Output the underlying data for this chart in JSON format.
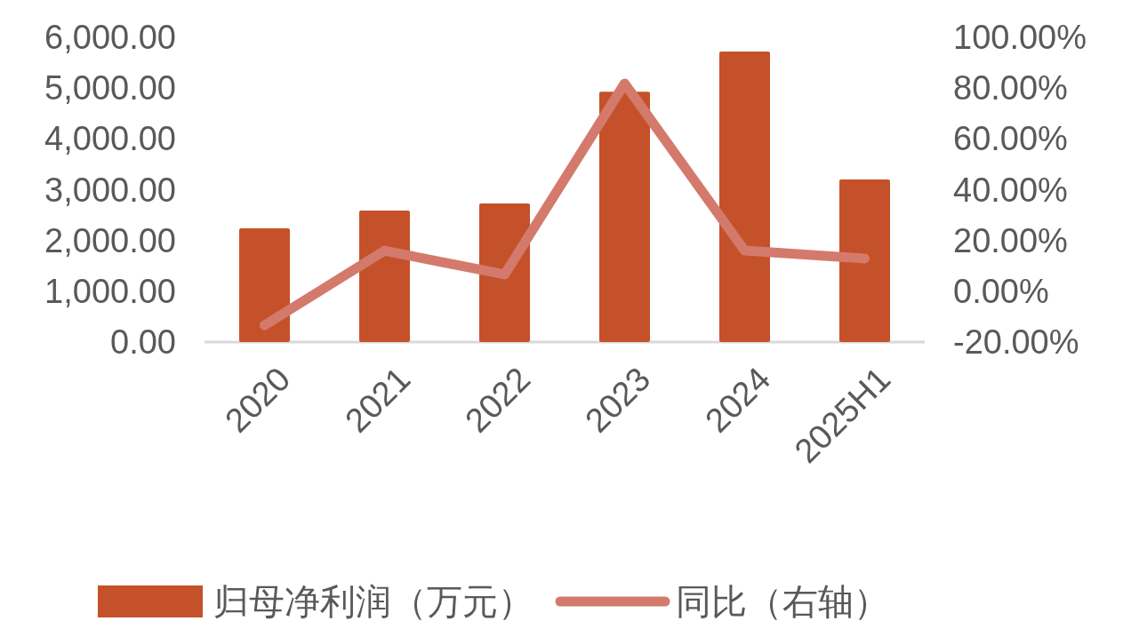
{
  "chart_data": {
    "type": "bar",
    "categories": [
      "2020",
      "2021",
      "2022",
      "2023",
      "2024",
      "2025H1"
    ],
    "series": [
      {
        "name": "归母净利润（万元）",
        "color": "#c5512a",
        "values": [
          2240,
          2590,
          2730,
          4930,
          5720,
          3200
        ]
      },
      {
        "name": "同比（右轴）",
        "type": "line",
        "axis": "y2",
        "color": "#d47a6c",
        "line_style": "solid",
        "values": [
          -13.4,
          16.0,
          6.6,
          81.8,
          16.0,
          12.9
        ]
      }
    ],
    "ylim": [
      0,
      6000
    ],
    "yticks": [
      {
        "value": 0,
        "label": "0.00"
      },
      {
        "value": 1000,
        "label": "1,000.00"
      },
      {
        "value": 2000,
        "label": "2,000.00"
      },
      {
        "value": 3000,
        "label": "3,000.00"
      },
      {
        "value": 4000,
        "label": "4,000.00"
      },
      {
        "value": 5000,
        "label": "5,000.00"
      },
      {
        "value": 6000,
        "label": "6,000.00"
      }
    ],
    "y2lim": [
      -20,
      100
    ],
    "y2ticks": [
      {
        "value": -20,
        "label": "-20.00%"
      },
      {
        "value": 0,
        "label": "0.00%"
      },
      {
        "value": 20,
        "label": "20.00%"
      },
      {
        "value": 40,
        "label": "40.00%"
      },
      {
        "value": 60,
        "label": "60.00%"
      },
      {
        "value": 80,
        "label": "80.00%"
      },
      {
        "value": 100,
        "label": "100.00%"
      }
    ],
    "legend": "bottom"
  }
}
